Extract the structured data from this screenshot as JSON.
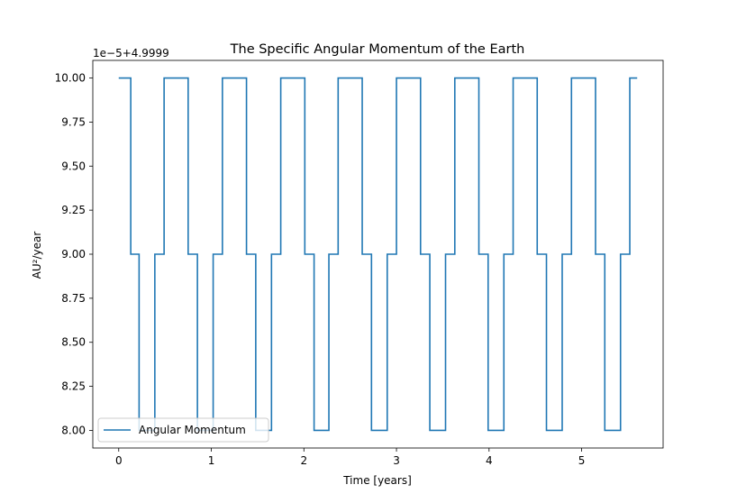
{
  "chart_data": {
    "type": "line",
    "title": "The Specific Angular Momentum of the Earth",
    "xlabel": "Time [years]",
    "ylabel": "AU²/year",
    "offset_text": "1e−5+4.9999",
    "xlim": [
      -0.28,
      5.88
    ],
    "ylim": [
      7.9,
      10.1
    ],
    "xticks": [
      0,
      1,
      2,
      3,
      4,
      5
    ],
    "xtick_labels": [
      "0",
      "1",
      "2",
      "3",
      "4",
      "5"
    ],
    "yticks": [
      8.0,
      8.25,
      8.5,
      8.75,
      9.0,
      9.25,
      9.5,
      9.75,
      10.0
    ],
    "ytick_labels": [
      "8.00",
      "8.25",
      "8.50",
      "8.75",
      "9.00",
      "9.25",
      "9.50",
      "9.75",
      "10.00"
    ],
    "grid": false,
    "legend_position": "lower-left",
    "series": [
      {
        "name": "Angular Momentum",
        "color": "#1f77b4",
        "step": "post",
        "x": [
          0.0,
          0.13,
          0.22,
          0.39,
          0.49,
          0.75,
          0.85,
          1.02,
          1.12,
          1.38,
          1.48,
          1.65,
          1.75,
          2.01,
          2.11,
          2.27,
          2.37,
          2.63,
          2.73,
          2.9,
          3.0,
          3.26,
          3.36,
          3.53,
          3.63,
          3.89,
          3.99,
          4.16,
          4.26,
          4.52,
          4.62,
          4.79,
          4.89,
          5.15,
          5.25,
          5.42,
          5.52,
          5.6
        ],
        "y": [
          10.0,
          9.0,
          8.0,
          9.0,
          10.0,
          9.0,
          8.0,
          9.0,
          10.0,
          9.0,
          8.0,
          9.0,
          10.0,
          9.0,
          8.0,
          9.0,
          10.0,
          9.0,
          8.0,
          9.0,
          10.0,
          9.0,
          8.0,
          9.0,
          10.0,
          9.0,
          8.0,
          9.0,
          10.0,
          9.0,
          8.0,
          9.0,
          10.0,
          9.0,
          8.0,
          9.0,
          10.0,
          10.0
        ]
      }
    ]
  }
}
